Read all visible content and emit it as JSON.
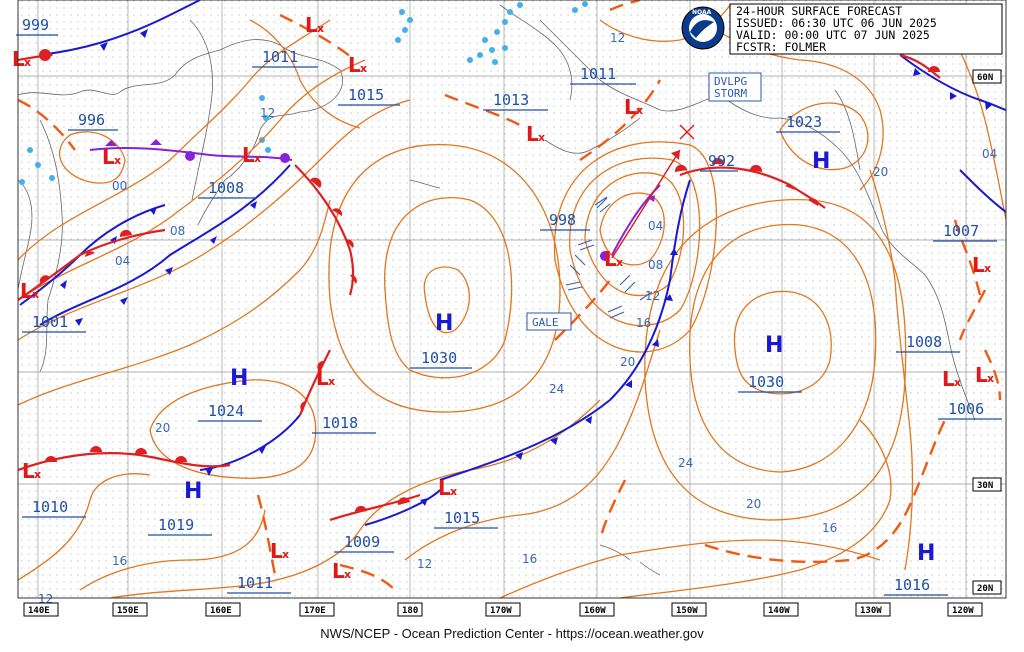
{
  "header": {
    "title_line": "24-HOUR SURFACE FORECAST",
    "issued_line": "ISSUED: 06:30 UTC 06 JUN 2025",
    "valid_line": "VALID:  00:00 UTC 07 JUN 2025",
    "forecaster_line": "FCSTR:  FOLMER",
    "logo_text": "NOAA"
  },
  "footer": "NWS/NCEP - Ocean Prediction Center - https://ocean.weather.gov",
  "longitude_labels": [
    "140E",
    "150E",
    "160E",
    "170E",
    "180",
    "170W",
    "160W",
    "150W",
    "140W",
    "130W",
    "120W"
  ],
  "latitude_labels": [
    "60N",
    "30N",
    "20N"
  ],
  "warnings": [
    {
      "id": "gale",
      "text": "GALE"
    },
    {
      "id": "dvlpg",
      "line1": "DVLPG",
      "line2": "STORM"
    }
  ],
  "highs": [
    {
      "id": "h1",
      "symbol": "H",
      "pressure": "1030"
    },
    {
      "id": "h2",
      "symbol": "H",
      "pressure": "1024"
    },
    {
      "id": "h3",
      "symbol": "H",
      "pressure": "1019"
    },
    {
      "id": "h4",
      "symbol": "H",
      "pressure": "1030"
    },
    {
      "id": "h5",
      "symbol": "H",
      "pressure": "1023"
    },
    {
      "id": "h6",
      "symbol": "H",
      "pressure": "1016"
    }
  ],
  "lows": [
    {
      "id": "l1",
      "pressure": "999"
    },
    {
      "id": "l2",
      "pressure": "996"
    },
    {
      "id": "l3",
      "pressure": "1008"
    },
    {
      "id": "l4",
      "pressure": "1011"
    },
    {
      "id": "l5",
      "pressure": "1015"
    },
    {
      "id": "l6",
      "pressure": "1013"
    },
    {
      "id": "l7",
      "pressure": "1011"
    },
    {
      "id": "l8",
      "pressure": "998"
    },
    {
      "id": "l9",
      "pressure": "992"
    },
    {
      "id": "l10",
      "pressure": "1001"
    },
    {
      "id": "l11",
      "pressure": "1018"
    },
    {
      "id": "l12",
      "pressure": "1010"
    },
    {
      "id": "l13",
      "pressure": "1015"
    },
    {
      "id": "l14",
      "pressure": "1009"
    },
    {
      "id": "l15",
      "pressure": "1011"
    },
    {
      "id": "l16",
      "pressure": "1007"
    },
    {
      "id": "l17",
      "pressure": "1008"
    },
    {
      "id": "l18",
      "pressure": "1006"
    }
  ],
  "isobar_labels": [
    "12",
    "12",
    "00",
    "08",
    "04",
    "20",
    "04",
    "08",
    "12",
    "16",
    "20",
    "24",
    "24",
    "20",
    "16",
    "16",
    "16",
    "12",
    "12",
    "20",
    "04"
  ],
  "low_symbol": "L",
  "low_marker": "x"
}
